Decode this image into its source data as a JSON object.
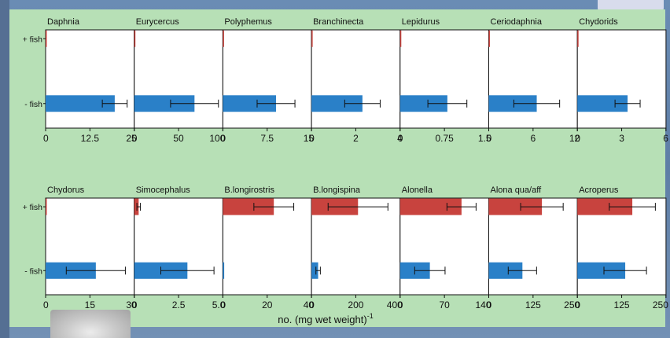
{
  "colors": {
    "fish_present": "#c8433e",
    "fish_absent": "#2a80c8",
    "panel_bg": "#b7e0b6",
    "plot_bg": "#ffffff",
    "axis": "#111111"
  },
  "chart_data": {
    "type": "bar",
    "orientation": "horizontal",
    "categories": [
      "+ fish",
      "- fish"
    ],
    "xlabel": "no. (mg wet weight)",
    "xlabel_superscript": "-1",
    "grid": false,
    "error_bars": true,
    "panels": [
      {
        "title": "Daphnia",
        "xlim": [
          0,
          25
        ],
        "ticks": [
          "0",
          "12.5",
          "25"
        ],
        "series": [
          {
            "category": "+ fish",
            "value": 0.2,
            "error": 0
          },
          {
            "category": "- fish",
            "value": 19.5,
            "error": 3.5
          }
        ]
      },
      {
        "title": "Eurycercus",
        "xlim": [
          0,
          100
        ],
        "ticks": [
          "0",
          "50",
          "100"
        ],
        "series": [
          {
            "category": "+ fish",
            "value": 1,
            "error": 0
          },
          {
            "category": "- fish",
            "value": 68,
            "error": 27
          }
        ]
      },
      {
        "title": "Polyphemus",
        "xlim": [
          0,
          15
        ],
        "ticks": [
          "0",
          "7.5",
          "15"
        ],
        "series": [
          {
            "category": "+ fish",
            "value": 0.1,
            "error": 0
          },
          {
            "category": "- fish",
            "value": 9,
            "error": 3.2
          }
        ]
      },
      {
        "title": "Branchinecta",
        "xlim": [
          0,
          4
        ],
        "ticks": [
          "0",
          "2",
          "4"
        ],
        "series": [
          {
            "category": "+ fish",
            "value": 0.02,
            "error": 0
          },
          {
            "category": "- fish",
            "value": 2.3,
            "error": 0.8
          }
        ]
      },
      {
        "title": "Lepidurus",
        "xlim": [
          0,
          1.5
        ],
        "ticks": [
          "0",
          "0.75",
          "1.5"
        ],
        "series": [
          {
            "category": "+ fish",
            "value": 0.01,
            "error": 0
          },
          {
            "category": "- fish",
            "value": 0.8,
            "error": 0.33
          }
        ]
      },
      {
        "title": "Ceriodaphnia",
        "xlim": [
          0,
          12
        ],
        "ticks": [
          "0",
          "6",
          "12"
        ],
        "series": [
          {
            "category": "+ fish",
            "value": 0.1,
            "error": 0
          },
          {
            "category": "- fish",
            "value": 6.5,
            "error": 3.1
          }
        ]
      },
      {
        "title": "Chydorids",
        "xlim": [
          0,
          6
        ],
        "ticks": [
          "0",
          "3",
          "6"
        ],
        "series": [
          {
            "category": "+ fish",
            "value": 0.05,
            "error": 0
          },
          {
            "category": "- fish",
            "value": 3.4,
            "error": 0.85
          }
        ]
      },
      {
        "title": "Chydorus",
        "xlim": [
          0,
          30
        ],
        "ticks": [
          "0",
          "15",
          "30"
        ],
        "series": [
          {
            "category": "+ fish",
            "value": 0.1,
            "error": 0
          },
          {
            "category": "- fish",
            "value": 17,
            "error": 10
          }
        ]
      },
      {
        "title": "Simocephalus",
        "xlim": [
          0,
          5
        ],
        "ticks": [
          "0",
          "2.5",
          "5.0"
        ],
        "series": [
          {
            "category": "+ fish",
            "value": 0.25,
            "error": 0.1
          },
          {
            "category": "- fish",
            "value": 3.0,
            "error": 1.5
          }
        ]
      },
      {
        "title": "B.longirostris",
        "xlim": [
          0,
          40
        ],
        "ticks": [
          "0",
          "20",
          "40"
        ],
        "series": [
          {
            "category": "+ fish",
            "value": 23,
            "error": 9
          },
          {
            "category": "- fish",
            "value": 0.6,
            "error": 0
          }
        ]
      },
      {
        "title": "B.longispina",
        "xlim": [
          0,
          400
        ],
        "ticks": [
          "0",
          "200",
          "400"
        ],
        "series": [
          {
            "category": "+ fish",
            "value": 210,
            "error": 135
          },
          {
            "category": "- fish",
            "value": 30,
            "error": 10
          }
        ]
      },
      {
        "title": "Alonella",
        "xlim": [
          0,
          140
        ],
        "ticks": [
          "0",
          "70",
          "140"
        ],
        "series": [
          {
            "category": "+ fish",
            "value": 97,
            "error": 23
          },
          {
            "category": "- fish",
            "value": 47,
            "error": 24
          }
        ]
      },
      {
        "title": "Alona qua/aff",
        "xlim": [
          0,
          250
        ],
        "ticks": [
          "0",
          "125",
          "250"
        ],
        "series": [
          {
            "category": "+ fish",
            "value": 150,
            "error": 60
          },
          {
            "category": "- fish",
            "value": 95,
            "error": 40
          }
        ]
      },
      {
        "title": "Acroperus",
        "xlim": [
          0,
          250
        ],
        "ticks": [
          "0",
          "125",
          "250"
        ],
        "series": [
          {
            "category": "+ fish",
            "value": 155,
            "error": 65
          },
          {
            "category": "- fish",
            "value": 135,
            "error": 60
          }
        ]
      }
    ]
  }
}
